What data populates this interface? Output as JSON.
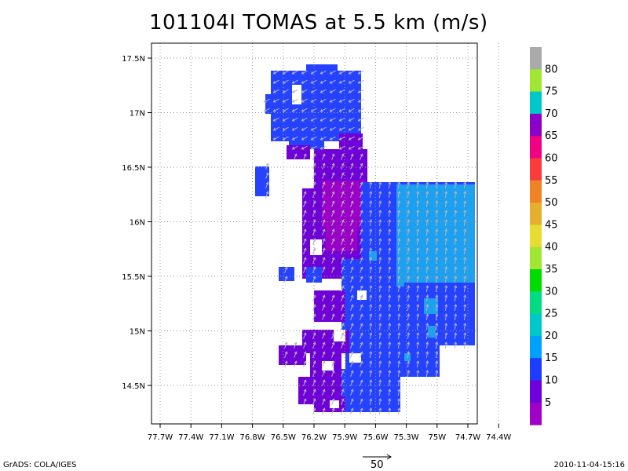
{
  "title": "101104I TOMAS at 5.5 km (m/s)",
  "footer": {
    "left": "GrADS: COLA/IGES",
    "right": "2010-11-04-15:16"
  },
  "reference_vector": {
    "label": "50"
  },
  "map": {
    "lon_labels": [
      "77.7W",
      "77.4W",
      "77.1W",
      "76.8W",
      "76.5W",
      "76.2W",
      "75.9W",
      "75.6W",
      "75.3W",
      "75W",
      "74.7W",
      "74.4W"
    ],
    "lat_labels": [
      "17.5N",
      "17N",
      "16.5N",
      "16N",
      "15.5N",
      "15N",
      "14.5N"
    ]
  },
  "colorbar": {
    "labels": [
      "5",
      "10",
      "15",
      "20",
      "25",
      "30",
      "35",
      "40",
      "45",
      "50",
      "55",
      "60",
      "65",
      "70",
      "75",
      "80"
    ],
    "colors": [
      "#a000c8",
      "#6e00dc",
      "#1e3cff",
      "#00a0ff",
      "#00c8c8",
      "#00dc82",
      "#00dc00",
      "#a0e632",
      "#e6dc32",
      "#e6af2d",
      "#f08228",
      "#fa3c3c",
      "#f00082",
      "#8c00c8",
      "#00c8c8",
      "#a0e632",
      "#aaaaaa"
    ]
  }
}
